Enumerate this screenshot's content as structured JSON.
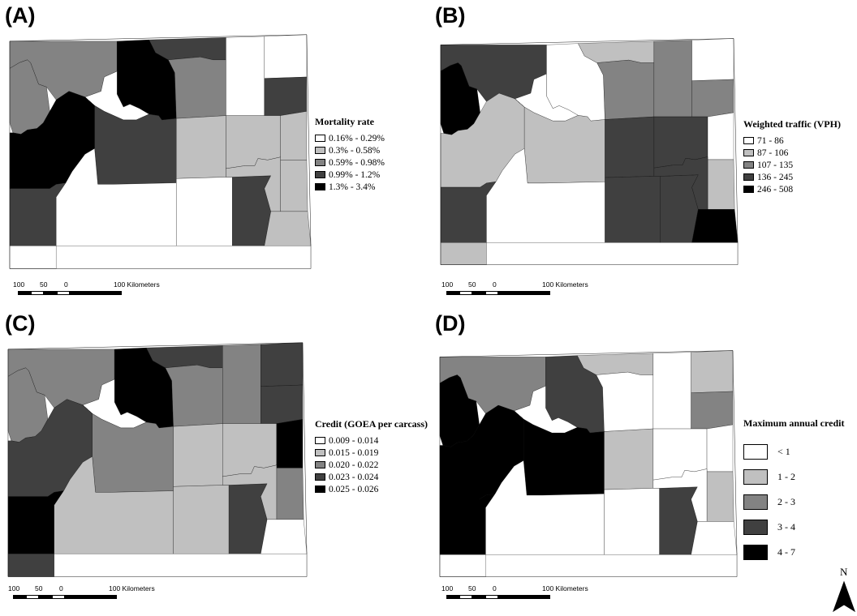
{
  "colors": {
    "c0": "#ffffff",
    "c1": "#c0c0c0",
    "c2": "#838383",
    "c3": "#404040",
    "c4": "#000000"
  },
  "panels": [
    {
      "label": "(A)",
      "legend_title": "Mortality rate",
      "classes": [
        "0.16% - 0.29%",
        "0.3% - 0.58%",
        "0.59% - 0.98%",
        "0.99% - 1.2%",
        "1.3% - 3.4%"
      ],
      "county_classes": [
        2,
        4,
        3,
        2,
        0,
        0,
        2,
        0,
        3,
        4,
        3,
        1,
        1,
        1,
        3,
        0,
        0,
        3,
        1,
        1,
        0,
        1
      ]
    },
    {
      "label": "(B)",
      "legend_title": "Weighted traffic (VPH)",
      "classes": [
        "71 - 86",
        "87 - 106",
        "107 - 135",
        "136 - 245",
        "246 - 508"
      ],
      "county_classes": [
        3,
        0,
        1,
        2,
        2,
        0,
        4,
        0,
        2,
        1,
        1,
        3,
        3,
        0,
        3,
        0,
        3,
        3,
        1,
        3,
        1,
        4
      ]
    },
    {
      "label": "(C)",
      "legend_title": "Credit (GOEA per carcass)",
      "classes": [
        "0.009 - 0.014",
        "0.015 - 0.019",
        "0.020 - 0.022",
        "0.023 - 0.024",
        "0.025 - 0.026"
      ],
      "county_classes": [
        2,
        4,
        3,
        2,
        2,
        3,
        2,
        0,
        3,
        3,
        2,
        1,
        1,
        4,
        4,
        1,
        1,
        3,
        2,
        1,
        3,
        0
      ]
    },
    {
      "label": "(D)",
      "legend_title": "Maximum annual credit",
      "classes": [
        "< 1",
        "1 - 2",
        "2 - 3",
        "3 - 4",
        "4 - 7"
      ],
      "county_classes": [
        2,
        3,
        1,
        0,
        0,
        1,
        4,
        0,
        2,
        4,
        4,
        1,
        0,
        0,
        4,
        0,
        0,
        3,
        1,
        0,
        0,
        0
      ]
    }
  ],
  "scale_bar": {
    "ticks": [
      "100",
      "50",
      "0",
      "100 Kilometers"
    ]
  },
  "north_arrow": {
    "label": "N"
  }
}
